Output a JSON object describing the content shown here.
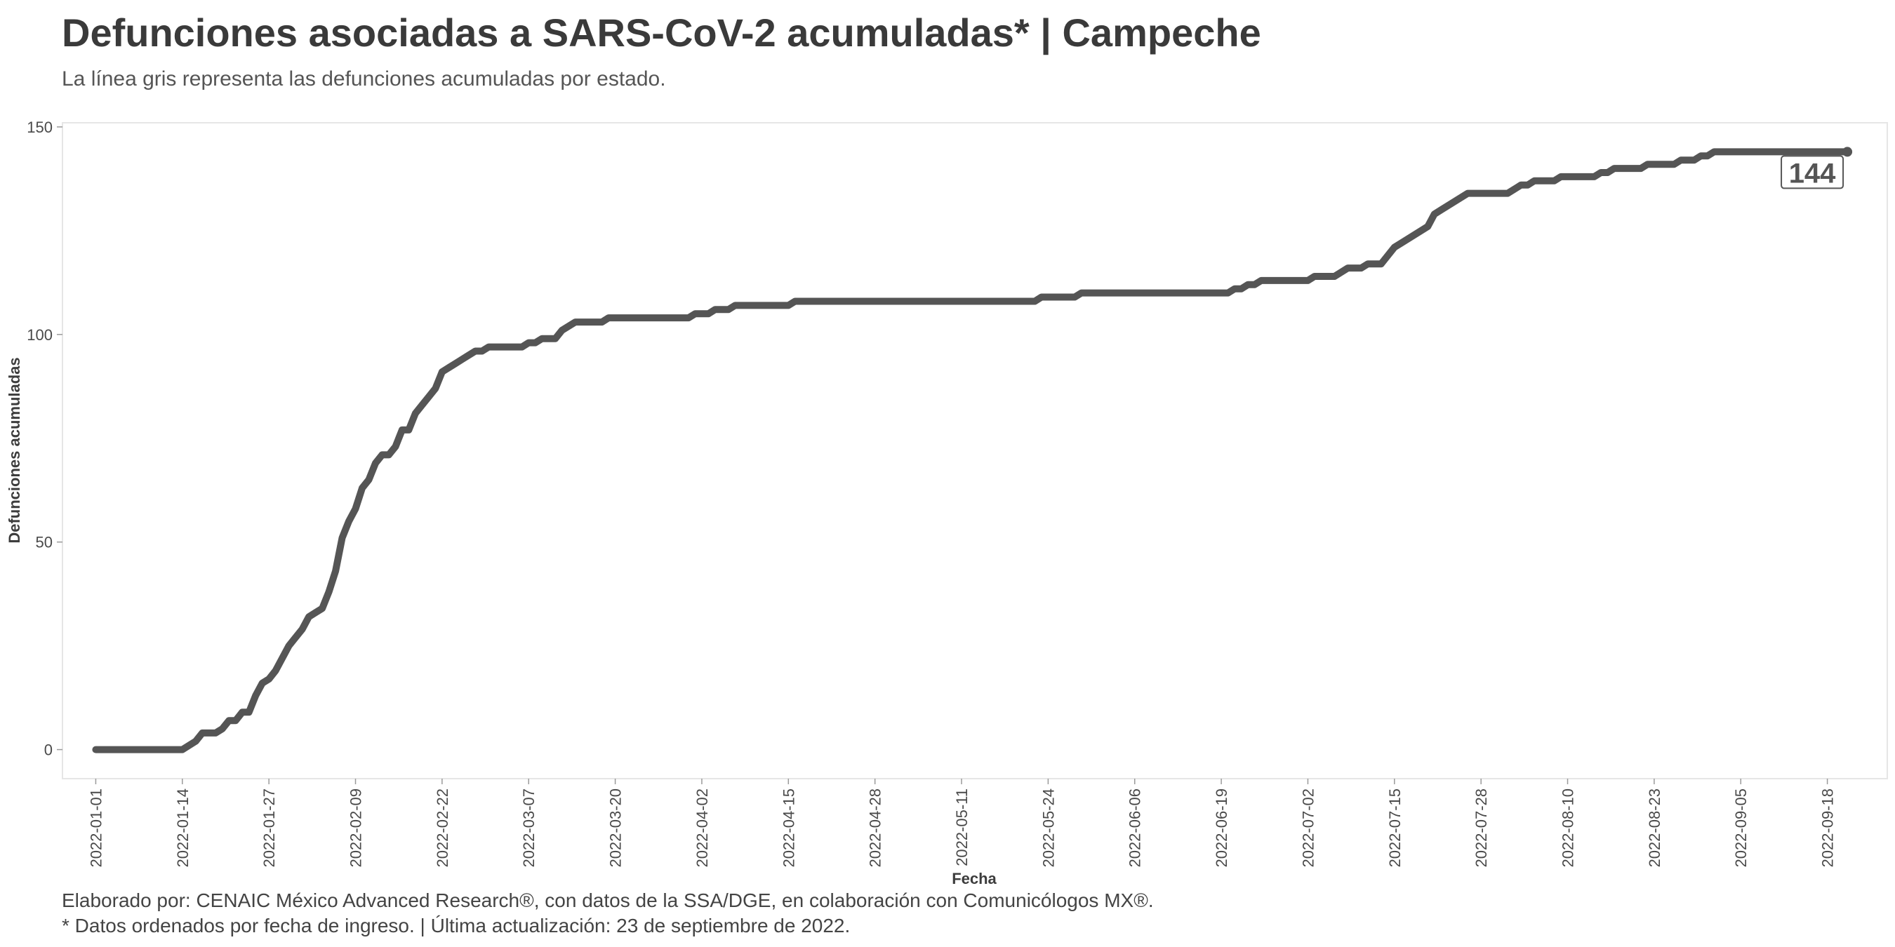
{
  "header": {
    "title": "Defunciones asociadas a SARS-CoV-2 acumuladas* | Campeche",
    "subtitle": "La línea gris representa las defunciones acumuladas por estado."
  },
  "footer": {
    "line1": "Elaborado por: CENAIC México Advanced Research®, con datos de la SSA/DGE, en colaboración con Comunicólogos MX®.",
    "line2": "* Datos ordenados por fecha de ingreso. | Última actualización: 23 de septiembre de 2022."
  },
  "colors": {
    "line": "#555555",
    "axis_text": "#4a4a4a",
    "panel_border": "#e6e6e6",
    "label_border": "#555555"
  },
  "chart_data": {
    "type": "line",
    "title": "Defunciones asociadas a SARS-CoV-2 acumuladas* | Campeche",
    "subtitle": "La línea gris representa las defunciones acumuladas por estado.",
    "xlabel": "Fecha",
    "ylabel": "Defunciones acumuladas",
    "x_range": [
      "2021-12-27",
      "2022-09-27"
    ],
    "ylim": [
      -7,
      151
    ],
    "y_ticks": [
      0,
      50,
      100,
      150
    ],
    "x_ticks": [
      "2022-01-01",
      "2022-01-14",
      "2022-01-27",
      "2022-02-09",
      "2022-02-22",
      "2022-03-07",
      "2022-03-20",
      "2022-04-02",
      "2022-04-15",
      "2022-04-28",
      "2022-05-11",
      "2022-05-24",
      "2022-06-06",
      "2022-06-19",
      "2022-07-02",
      "2022-07-15",
      "2022-07-28",
      "2022-08-10",
      "2022-08-23",
      "2022-09-05",
      "2022-09-18"
    ],
    "grid": false,
    "legend": "none",
    "end_label": "144",
    "points": [
      [
        "2022-01-01",
        0
      ],
      [
        "2022-01-14",
        0
      ],
      [
        "2022-01-16",
        2
      ],
      [
        "2022-01-17",
        4
      ],
      [
        "2022-01-19",
        4
      ],
      [
        "2022-01-20",
        5
      ],
      [
        "2022-01-21",
        7
      ],
      [
        "2022-01-22",
        7
      ],
      [
        "2022-01-23",
        9
      ],
      [
        "2022-01-24",
        9
      ],
      [
        "2022-01-25",
        13
      ],
      [
        "2022-01-26",
        16
      ],
      [
        "2022-01-27",
        17
      ],
      [
        "2022-01-28",
        19
      ],
      [
        "2022-01-29",
        22
      ],
      [
        "2022-01-30",
        25
      ],
      [
        "2022-01-31",
        27
      ],
      [
        "2022-02-01",
        29
      ],
      [
        "2022-02-02",
        32
      ],
      [
        "2022-02-03",
        33
      ],
      [
        "2022-02-04",
        34
      ],
      [
        "2022-02-05",
        38
      ],
      [
        "2022-02-06",
        43
      ],
      [
        "2022-02-07",
        51
      ],
      [
        "2022-02-08",
        55
      ],
      [
        "2022-02-09",
        58
      ],
      [
        "2022-02-10",
        63
      ],
      [
        "2022-02-11",
        65
      ],
      [
        "2022-02-12",
        69
      ],
      [
        "2022-02-13",
        71
      ],
      [
        "2022-02-14",
        71
      ],
      [
        "2022-02-15",
        73
      ],
      [
        "2022-02-16",
        77
      ],
      [
        "2022-02-17",
        77
      ],
      [
        "2022-02-18",
        81
      ],
      [
        "2022-02-19",
        83
      ],
      [
        "2022-02-20",
        85
      ],
      [
        "2022-02-21",
        87
      ],
      [
        "2022-02-22",
        91
      ],
      [
        "2022-02-23",
        92
      ],
      [
        "2022-02-24",
        93
      ],
      [
        "2022-02-25",
        94
      ],
      [
        "2022-02-26",
        95
      ],
      [
        "2022-02-27",
        96
      ],
      [
        "2022-02-28",
        96
      ],
      [
        "2022-03-01",
        97
      ],
      [
        "2022-03-06",
        97
      ],
      [
        "2022-03-07",
        98
      ],
      [
        "2022-03-08",
        98
      ],
      [
        "2022-03-09",
        99
      ],
      [
        "2022-03-11",
        99
      ],
      [
        "2022-03-12",
        101
      ],
      [
        "2022-03-13",
        102
      ],
      [
        "2022-03-14",
        103
      ],
      [
        "2022-03-18",
        103
      ],
      [
        "2022-03-19",
        104
      ],
      [
        "2022-03-31",
        104
      ],
      [
        "2022-04-01",
        105
      ],
      [
        "2022-04-03",
        105
      ],
      [
        "2022-04-04",
        106
      ],
      [
        "2022-04-06",
        106
      ],
      [
        "2022-04-07",
        107
      ],
      [
        "2022-04-15",
        107
      ],
      [
        "2022-04-16",
        108
      ],
      [
        "2022-05-22",
        108
      ],
      [
        "2022-05-23",
        109
      ],
      [
        "2022-05-28",
        109
      ],
      [
        "2022-05-29",
        110
      ],
      [
        "2022-06-20",
        110
      ],
      [
        "2022-06-21",
        111
      ],
      [
        "2022-06-22",
        111
      ],
      [
        "2022-06-23",
        112
      ],
      [
        "2022-06-24",
        112
      ],
      [
        "2022-06-25",
        113
      ],
      [
        "2022-07-02",
        113
      ],
      [
        "2022-07-03",
        114
      ],
      [
        "2022-07-06",
        114
      ],
      [
        "2022-07-08",
        116
      ],
      [
        "2022-07-10",
        116
      ],
      [
        "2022-07-11",
        117
      ],
      [
        "2022-07-13",
        117
      ],
      [
        "2022-07-14",
        119
      ],
      [
        "2022-07-15",
        121
      ],
      [
        "2022-07-16",
        122
      ],
      [
        "2022-07-20",
        126
      ],
      [
        "2022-07-21",
        129
      ],
      [
        "2022-07-22",
        130
      ],
      [
        "2022-07-26",
        134
      ],
      [
        "2022-08-01",
        134
      ],
      [
        "2022-08-03",
        136
      ],
      [
        "2022-08-04",
        136
      ],
      [
        "2022-08-05",
        137
      ],
      [
        "2022-08-08",
        137
      ],
      [
        "2022-08-09",
        138
      ],
      [
        "2022-08-14",
        138
      ],
      [
        "2022-08-15",
        139
      ],
      [
        "2022-08-16",
        139
      ],
      [
        "2022-08-17",
        140
      ],
      [
        "2022-08-21",
        140
      ],
      [
        "2022-08-22",
        141
      ],
      [
        "2022-08-26",
        141
      ],
      [
        "2022-08-27",
        142
      ],
      [
        "2022-08-29",
        142
      ],
      [
        "2022-08-30",
        143
      ],
      [
        "2022-08-31",
        143
      ],
      [
        "2022-09-01",
        144
      ],
      [
        "2022-09-21",
        144
      ]
    ]
  }
}
